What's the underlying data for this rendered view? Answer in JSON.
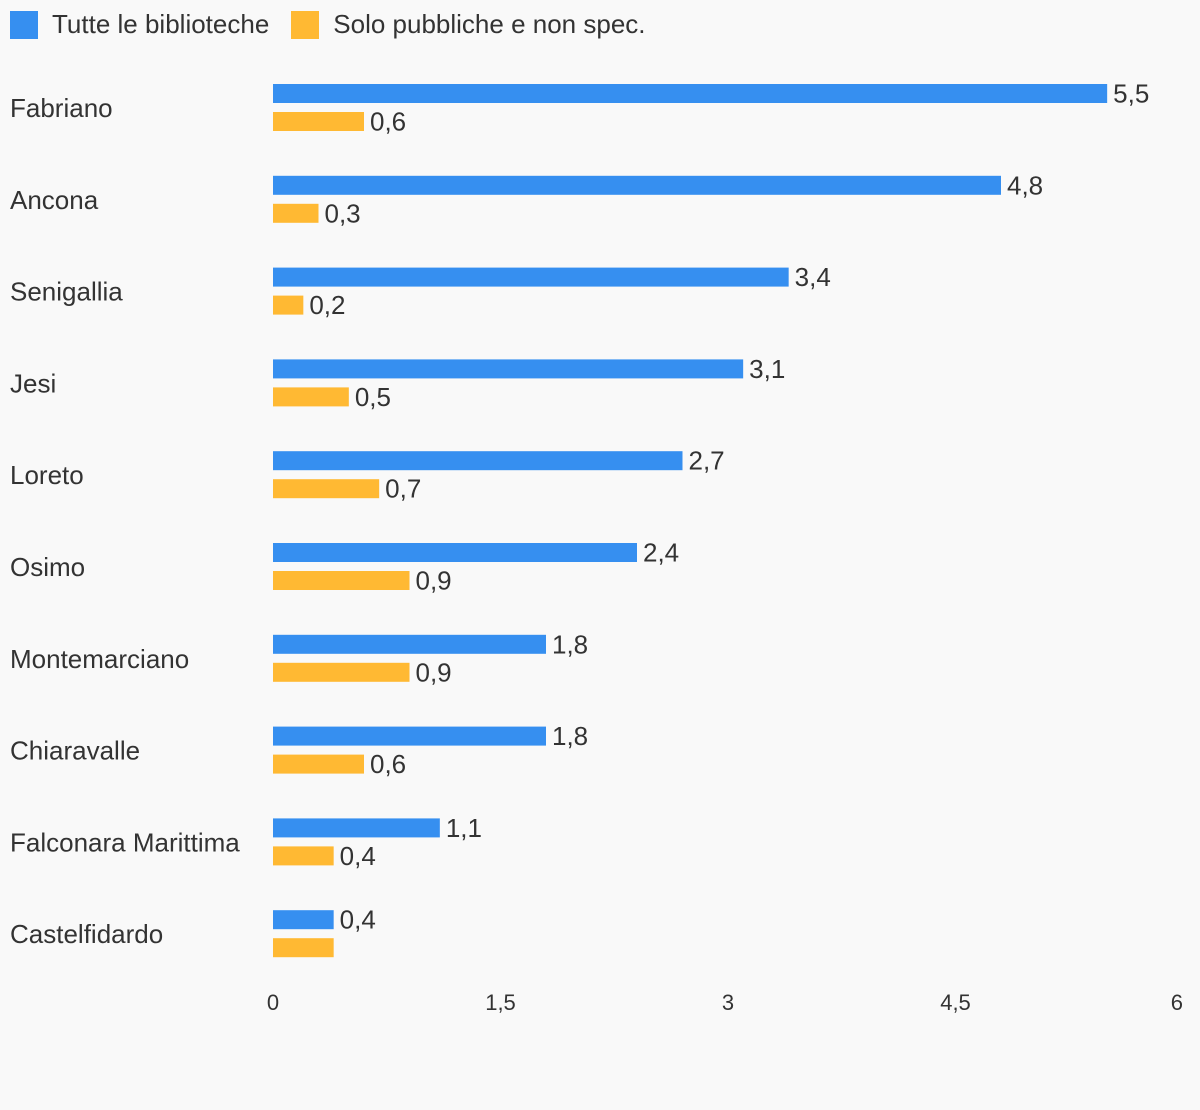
{
  "colors": {
    "series_1": "#368ff0",
    "series_2": "#ffb933",
    "background": "#f9f9f9",
    "text": "#333333"
  },
  "legend": [
    {
      "label": "Tutte le biblioteche",
      "color": "#368ff0"
    },
    {
      "label": "Solo pubbliche e non spec.",
      "color": "#ffb933"
    }
  ],
  "chart_data": {
    "type": "bar",
    "orientation": "horizontal",
    "categories": [
      "Fabriano",
      "Ancona",
      "Senigallia",
      "Jesi",
      "Loreto",
      "Osimo",
      "Montemarciano",
      "Chiaravalle",
      "Falconara Marittima",
      "Castelfidardo"
    ],
    "series": [
      {
        "name": "Tutte le biblioteche",
        "values": [
          5.5,
          4.8,
          3.4,
          3.1,
          2.7,
          2.4,
          1.8,
          1.8,
          1.1,
          0.4
        ]
      },
      {
        "name": "Solo pubbliche e non spec.",
        "values": [
          0.6,
          0.3,
          0.2,
          0.5,
          0.7,
          0.9,
          0.9,
          0.6,
          0.4,
          0.4
        ]
      }
    ],
    "data_labels": [
      [
        "5,5",
        "4,8",
        "3,4",
        "3,1",
        "2,7",
        "2,4",
        "1,8",
        "1,8",
        "1,1",
        "0,4"
      ],
      [
        "0,6",
        "0,3",
        "0,2",
        "0,5",
        "0,7",
        "0,9",
        "0,9",
        "0,6",
        "0,4",
        ""
      ]
    ],
    "x_ticks": [
      0,
      1.5,
      3,
      4.5,
      6
    ],
    "x_tick_labels": [
      "0",
      "1,5",
      "3",
      "4,5",
      "6"
    ],
    "xlim": [
      0,
      6
    ],
    "grid": false,
    "legend_position": "top-left",
    "title": "",
    "xlabel": "",
    "ylabel": ""
  }
}
